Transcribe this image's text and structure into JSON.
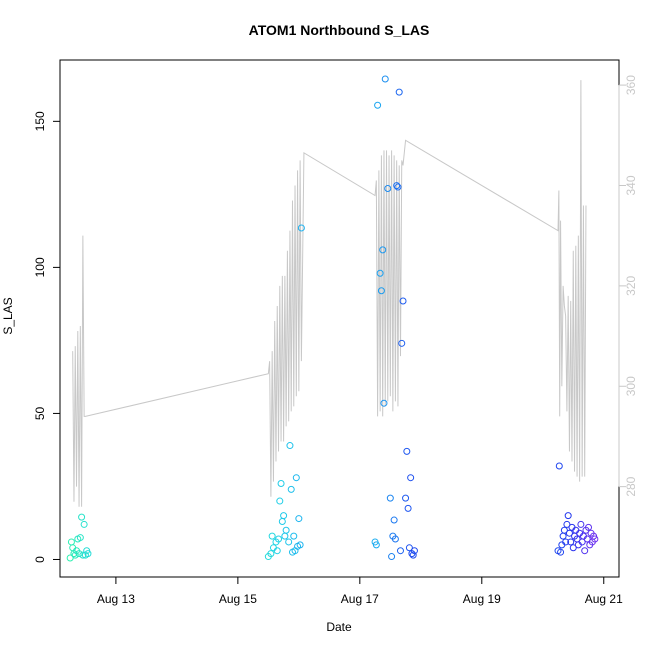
{
  "chart_data": {
    "type": "scatter",
    "title": "ATOM1 Northbound S_LAS",
    "xlabel": "Date",
    "ylabel": "S_LAS",
    "x_ticks": [
      "Aug 13",
      "Aug 15",
      "Aug 17",
      "Aug 19",
      "Aug 21"
    ],
    "y_ticks": [
      "0",
      "50",
      "100",
      "150"
    ],
    "y2_ticks": [
      "280",
      "300",
      "320",
      "340",
      "360"
    ],
    "xlim": [
      "2021-08-12 02:00",
      "2021-08-21 06:00"
    ],
    "ylim": [
      -6,
      171
    ],
    "y2lim": [
      262,
      365
    ],
    "grid": false,
    "colors": {
      "line": "#c8c8c8",
      "axis": "#000000",
      "right_axis": "#c8c8c8",
      "point_gradient": [
        "#2ef0b0",
        "#22d4e6",
        "#1ab0f0",
        "#1d5cf0",
        "#2233ee",
        "#7030f0"
      ]
    },
    "series": [
      {
        "type": "points",
        "axis": "left",
        "points": [
          [
            "2021-08-12 06:00",
            0.5
          ],
          [
            "2021-08-12 06:30",
            6
          ],
          [
            "2021-08-12 07:00",
            4
          ],
          [
            "2021-08-12 07:30",
            2
          ],
          [
            "2021-08-12 08:00",
            1.5
          ],
          [
            "2021-08-12 08:30",
            3
          ],
          [
            "2021-08-12 09:00",
            7
          ],
          [
            "2021-08-12 09:30",
            2
          ],
          [
            "2021-08-12 10:00",
            7.5
          ],
          [
            "2021-08-12 10:30",
            14.5
          ],
          [
            "2021-08-12 11:00",
            1.5
          ],
          [
            "2021-08-12 11:30",
            12
          ],
          [
            "2021-08-12 12:00",
            1.5
          ],
          [
            "2021-08-12 12:30",
            3
          ],
          [
            "2021-08-12 13:00",
            2
          ],
          [
            "2021-08-15 12:00",
            1
          ],
          [
            "2021-08-15 13:00",
            2
          ],
          [
            "2021-08-15 13:30",
            8
          ],
          [
            "2021-08-15 14:00",
            4
          ],
          [
            "2021-08-15 15:00",
            6
          ],
          [
            "2021-08-15 15:30",
            3
          ],
          [
            "2021-08-15 16:00",
            7
          ],
          [
            "2021-08-15 16:30",
            20
          ],
          [
            "2021-08-15 17:00",
            26
          ],
          [
            "2021-08-15 17:30",
            13
          ],
          [
            "2021-08-15 18:00",
            15
          ],
          [
            "2021-08-15 18:30",
            8
          ],
          [
            "2021-08-15 19:00",
            10
          ],
          [
            "2021-08-15 20:00",
            6
          ],
          [
            "2021-08-15 20:30",
            39
          ],
          [
            "2021-08-15 21:00",
            24
          ],
          [
            "2021-08-15 21:30",
            2.5
          ],
          [
            "2021-08-15 22:00",
            8
          ],
          [
            "2021-08-15 22:30",
            3
          ],
          [
            "2021-08-15 23:00",
            28
          ],
          [
            "2021-08-15 23:30",
            4.5
          ],
          [
            "2021-08-16 00:00",
            14
          ],
          [
            "2021-08-16 00:30",
            5
          ],
          [
            "2021-08-16 01:00",
            113.5
          ],
          [
            "2021-08-17 06:00",
            6
          ],
          [
            "2021-08-17 06:30",
            5
          ],
          [
            "2021-08-17 07:00",
            155.5
          ],
          [
            "2021-08-17 08:00",
            98
          ],
          [
            "2021-08-17 08:30",
            92
          ],
          [
            "2021-08-17 09:00",
            106
          ],
          [
            "2021-08-17 09:30",
            53.5
          ],
          [
            "2021-08-17 10:00",
            164.5
          ],
          [
            "2021-08-17 11:00",
            127
          ],
          [
            "2021-08-17 12:00",
            21
          ],
          [
            "2021-08-17 12:30",
            1
          ],
          [
            "2021-08-17 13:00",
            8
          ],
          [
            "2021-08-17 13:30",
            13.5
          ],
          [
            "2021-08-17 14:00",
            7
          ],
          [
            "2021-08-17 14:30",
            128
          ],
          [
            "2021-08-17 15:00",
            127.5
          ],
          [
            "2021-08-17 15:30",
            160
          ],
          [
            "2021-08-17 16:00",
            3
          ],
          [
            "2021-08-17 16:30",
            74
          ],
          [
            "2021-08-17 17:00",
            88.5
          ],
          [
            "2021-08-17 18:00",
            21
          ],
          [
            "2021-08-17 18:30",
            37
          ],
          [
            "2021-08-17 19:00",
            17.5
          ],
          [
            "2021-08-17 19:30",
            4
          ],
          [
            "2021-08-17 20:00",
            28
          ],
          [
            "2021-08-17 20:30",
            2
          ],
          [
            "2021-08-17 21:00",
            1.5
          ],
          [
            "2021-08-17 21:30",
            3
          ],
          [
            "2021-08-20 06:00",
            3
          ],
          [
            "2021-08-20 06:30",
            32
          ],
          [
            "2021-08-20 07:00",
            2.5
          ],
          [
            "2021-08-20 07:30",
            5
          ],
          [
            "2021-08-20 08:00",
            8
          ],
          [
            "2021-08-20 08:30",
            10
          ],
          [
            "2021-08-20 09:00",
            6
          ],
          [
            "2021-08-20 09:30",
            12
          ],
          [
            "2021-08-20 10:00",
            15
          ],
          [
            "2021-08-20 10:30",
            9
          ],
          [
            "2021-08-20 11:00",
            6
          ],
          [
            "2021-08-20 11:30",
            11
          ],
          [
            "2021-08-20 12:00",
            4
          ],
          [
            "2021-08-20 12:30",
            8
          ],
          [
            "2021-08-20 13:00",
            10
          ],
          [
            "2021-08-20 13:30",
            7
          ],
          [
            "2021-08-20 14:00",
            5
          ],
          [
            "2021-08-20 14:30",
            9
          ],
          [
            "2021-08-20 15:00",
            12
          ],
          [
            "2021-08-20 15:30",
            6
          ],
          [
            "2021-08-20 16:00",
            8
          ],
          [
            "2021-08-20 16:30",
            3
          ],
          [
            "2021-08-20 17:00",
            10
          ],
          [
            "2021-08-20 17:30",
            7
          ],
          [
            "2021-08-20 18:00",
            11
          ],
          [
            "2021-08-20 18:30",
            5
          ],
          [
            "2021-08-20 19:00",
            9
          ],
          [
            "2021-08-20 19:30",
            6
          ],
          [
            "2021-08-20 20:00",
            8
          ],
          [
            "2021-08-20 20:30",
            7
          ]
        ]
      },
      {
        "type": "line",
        "axis": "right",
        "points": [
          [
            "2021-08-12 07:00",
            307
          ],
          [
            "2021-08-12 07:30",
            277
          ],
          [
            "2021-08-12 08:00",
            308
          ],
          [
            "2021-08-12 08:30",
            280
          ],
          [
            "2021-08-12 09:00",
            311
          ],
          [
            "2021-08-12 09:30",
            276
          ],
          [
            "2021-08-12 10:00",
            312
          ],
          [
            "2021-08-12 10:30",
            276
          ],
          [
            "2021-08-12 11:00",
            330
          ],
          [
            "2021-08-12 11:30",
            294
          ],
          [
            "2021-08-12 12:00",
            294
          ],
          [
            "2021-08-15 12:00",
            302.5
          ],
          [
            "2021-08-15 12:30",
            305
          ],
          [
            "2021-08-15 13:00",
            278
          ],
          [
            "2021-08-15 13:30",
            307
          ],
          [
            "2021-08-15 14:00",
            281
          ],
          [
            "2021-08-15 14:30",
            313
          ],
          [
            "2021-08-15 15:00",
            285
          ],
          [
            "2021-08-15 15:30",
            316
          ],
          [
            "2021-08-15 16:00",
            287
          ],
          [
            "2021-08-15 16:30",
            320
          ],
          [
            "2021-08-15 17:00",
            289
          ],
          [
            "2021-08-15 17:30",
            322
          ],
          [
            "2021-08-15 18:00",
            289
          ],
          [
            "2021-08-15 18:30",
            322
          ],
          [
            "2021-08-15 19:00",
            292
          ],
          [
            "2021-08-15 19:30",
            327
          ],
          [
            "2021-08-15 20:00",
            293
          ],
          [
            "2021-08-15 20:30",
            331
          ],
          [
            "2021-08-15 21:00",
            295
          ],
          [
            "2021-08-15 21:30",
            337
          ],
          [
            "2021-08-15 22:00",
            296
          ],
          [
            "2021-08-15 22:30",
            340
          ],
          [
            "2021-08-15 23:00",
            298
          ],
          [
            "2021-08-15 23:30",
            343
          ],
          [
            "2021-08-16 00:00",
            299
          ],
          [
            "2021-08-16 00:30",
            345
          ],
          [
            "2021-08-16 01:00",
            305
          ],
          [
            "2021-08-16 02:00",
            346.5
          ],
          [
            "2021-08-17 06:00",
            338
          ],
          [
            "2021-08-17 06:30",
            341
          ],
          [
            "2021-08-17 07:00",
            294
          ],
          [
            "2021-08-17 07:30",
            343
          ],
          [
            "2021-08-17 08:00",
            295
          ],
          [
            "2021-08-17 08:30",
            346
          ],
          [
            "2021-08-17 09:00",
            294
          ],
          [
            "2021-08-17 09:30",
            347
          ],
          [
            "2021-08-17 10:00",
            296
          ],
          [
            "2021-08-17 10:30",
            347
          ],
          [
            "2021-08-17 11:00",
            297
          ],
          [
            "2021-08-17 11:30",
            346
          ],
          [
            "2021-08-17 12:00",
            298
          ],
          [
            "2021-08-17 12:30",
            347
          ],
          [
            "2021-08-17 13:00",
            295
          ],
          [
            "2021-08-17 13:30",
            346
          ],
          [
            "2021-08-17 14:00",
            297
          ],
          [
            "2021-08-17 14:30",
            345
          ],
          [
            "2021-08-17 15:00",
            296
          ],
          [
            "2021-08-17 15:30",
            344
          ],
          [
            "2021-08-17 16:00",
            306
          ],
          [
            "2021-08-17 16:30",
            345
          ],
          [
            "2021-08-17 17:00",
            344
          ],
          [
            "2021-08-17 18:00",
            349
          ],
          [
            "2021-08-20 06:00",
            331
          ],
          [
            "2021-08-20 06:20",
            339
          ],
          [
            "2021-08-20 06:40",
            294
          ],
          [
            "2021-08-20 07:00",
            333
          ],
          [
            "2021-08-20 07:30",
            300
          ],
          [
            "2021-08-20 08:00",
            320
          ],
          [
            "2021-08-20 08:30",
            316
          ],
          [
            "2021-08-20 09:00",
            314
          ],
          [
            "2021-08-20 09:30",
            295
          ],
          [
            "2021-08-20 10:00",
            318
          ],
          [
            "2021-08-20 10:30",
            287
          ],
          [
            "2021-08-20 11:00",
            317
          ],
          [
            "2021-08-20 11:30",
            285
          ],
          [
            "2021-08-20 12:00",
            327
          ],
          [
            "2021-08-20 12:30",
            283
          ],
          [
            "2021-08-20 13:00",
            328
          ],
          [
            "2021-08-20 13:30",
            282
          ],
          [
            "2021-08-20 14:00",
            330
          ],
          [
            "2021-08-20 14:30",
            281
          ],
          [
            "2021-08-20 15:00",
            361
          ],
          [
            "2021-08-20 15:30",
            282
          ],
          [
            "2021-08-20 16:00",
            336
          ],
          [
            "2021-08-20 16:30",
            282
          ],
          [
            "2021-08-20 17:00",
            336
          ]
        ]
      }
    ]
  }
}
